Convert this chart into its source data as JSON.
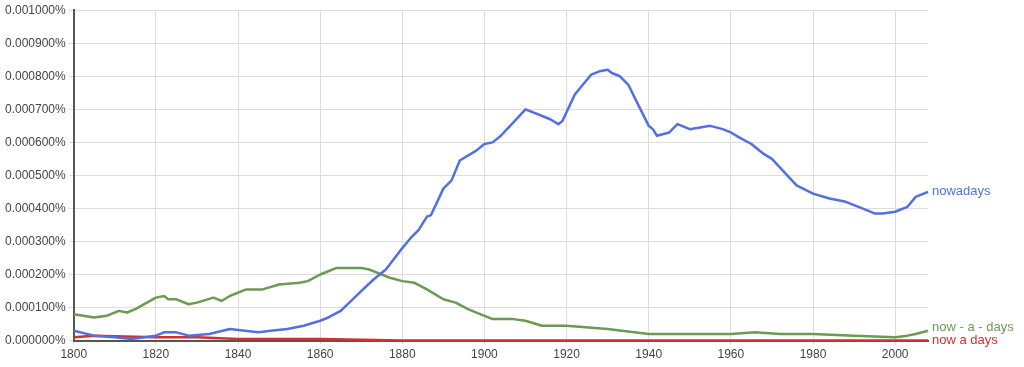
{
  "chart_data": {
    "type": "line",
    "xlim": [
      1800,
      2008
    ],
    "xticks": [
      1800,
      1820,
      1840,
      1860,
      1880,
      1900,
      1920,
      1940,
      1960,
      1980,
      2000
    ],
    "ylim": [
      0,
      0.001
    ],
    "yticks": [
      {
        "value": 0,
        "label": "0.000000%"
      },
      {
        "value": 0.0001,
        "label": "0.000100%"
      },
      {
        "value": 0.0002,
        "label": "0.000200%"
      },
      {
        "value": 0.0003,
        "label": "0.000300%"
      },
      {
        "value": 0.0004,
        "label": "0.000400%"
      },
      {
        "value": 0.0005,
        "label": "0.000500%"
      },
      {
        "value": 0.0006,
        "label": "0.000600%"
      },
      {
        "value": 0.0007,
        "label": "0.000700%"
      },
      {
        "value": 0.0008,
        "label": "0.000800%"
      },
      {
        "value": 0.0009,
        "label": "0.000900%"
      },
      {
        "value": 0.001,
        "label": "0.001000%"
      }
    ],
    "grid": true,
    "marker": "none",
    "line_style": "solid",
    "series": [
      {
        "name": "nowadays",
        "color": "#5470e0",
        "x": [
          1800,
          1805,
          1810,
          1814,
          1820,
          1822,
          1825,
          1828,
          1833,
          1838,
          1845,
          1848,
          1852,
          1856,
          1860,
          1862,
          1865,
          1870,
          1873,
          1876,
          1880,
          1882,
          1884,
          1886,
          1887,
          1890,
          1892,
          1894,
          1898,
          1900,
          1902,
          1904,
          1907,
          1910,
          1913,
          1916,
          1918,
          1919,
          1922,
          1924,
          1926,
          1928,
          1930,
          1931,
          1933,
          1935,
          1938,
          1940,
          1941,
          1942,
          1945,
          1947,
          1950,
          1955,
          1958,
          1960,
          1962,
          1965,
          1968,
          1970,
          1973,
          1976,
          1980,
          1984,
          1988,
          1992,
          1995,
          1997,
          2000,
          2003,
          2005,
          2008
        ],
        "values": [
          3e-05,
          1.5e-05,
          1e-05,
          5e-06,
          1.5e-05,
          2.5e-05,
          2.5e-05,
          1.5e-05,
          2e-05,
          3.5e-05,
          2.5e-05,
          3e-05,
          3.5e-05,
          4.5e-05,
          6e-05,
          7e-05,
          9e-05,
          0.00015,
          0.000185,
          0.000215,
          0.00028,
          0.00031,
          0.000335,
          0.000375,
          0.00038,
          0.00046,
          0.000485,
          0.000545,
          0.000575,
          0.000595,
          0.0006,
          0.00062,
          0.00066,
          0.0007,
          0.000685,
          0.00067,
          0.000655,
          0.000665,
          0.000745,
          0.000775,
          0.000805,
          0.000815,
          0.00082,
          0.00081,
          0.0008,
          0.000775,
          0.0007,
          0.00065,
          0.00064,
          0.00062,
          0.00063,
          0.000655,
          0.00064,
          0.00065,
          0.00064,
          0.00063,
          0.000615,
          0.000595,
          0.000565,
          0.00055,
          0.00051,
          0.00047,
          0.000445,
          0.00043,
          0.00042,
          0.0004,
          0.000385,
          0.000385,
          0.00039,
          0.000405,
          0.000435,
          0.00045
        ]
      },
      {
        "name": "now - a - days",
        "color": "#6b9a52",
        "x": [
          1800,
          1805,
          1808,
          1811,
          1813,
          1815,
          1820,
          1822,
          1823,
          1825,
          1828,
          1830,
          1834,
          1836,
          1838,
          1842,
          1846,
          1850,
          1855,
          1857,
          1860,
          1862,
          1864,
          1868,
          1870,
          1872,
          1875,
          1877,
          1880,
          1883,
          1886,
          1890,
          1893,
          1896,
          1900,
          1902,
          1907,
          1910,
          1914,
          1920,
          1930,
          1940,
          1948,
          1955,
          1960,
          1966,
          1972,
          1980,
          1990,
          2000,
          2003,
          2005,
          2008
        ],
        "values": [
          8e-05,
          7e-05,
          7.5e-05,
          9e-05,
          8.5e-05,
          9.5e-05,
          0.00013,
          0.000135,
          0.000125,
          0.000125,
          0.00011,
          0.000115,
          0.00013,
          0.00012,
          0.000135,
          0.000155,
          0.000155,
          0.00017,
          0.000175,
          0.00018,
          0.0002,
          0.00021,
          0.00022,
          0.00022,
          0.00022,
          0.000215,
          0.0002,
          0.00019,
          0.00018,
          0.000175,
          0.000155,
          0.000125,
          0.000115,
          9.5e-05,
          7.5e-05,
          6.5e-05,
          6.5e-05,
          6e-05,
          4.5e-05,
          4.5e-05,
          3.5e-05,
          2e-05,
          2e-05,
          2e-05,
          2e-05,
          2.5e-05,
          2e-05,
          2e-05,
          1.5e-05,
          1e-05,
          1.5e-05,
          2e-05,
          3e-05
        ]
      },
      {
        "name": "now a days",
        "color": "#d0312d",
        "x": [
          1800,
          1805,
          1820,
          1830,
          1840,
          1860,
          1880,
          1900,
          1960,
          2008
        ],
        "values": [
          1e-05,
          1.5e-05,
          1e-05,
          1e-05,
          5e-06,
          5e-06,
          0,
          0,
          0,
          0
        ]
      }
    ]
  }
}
